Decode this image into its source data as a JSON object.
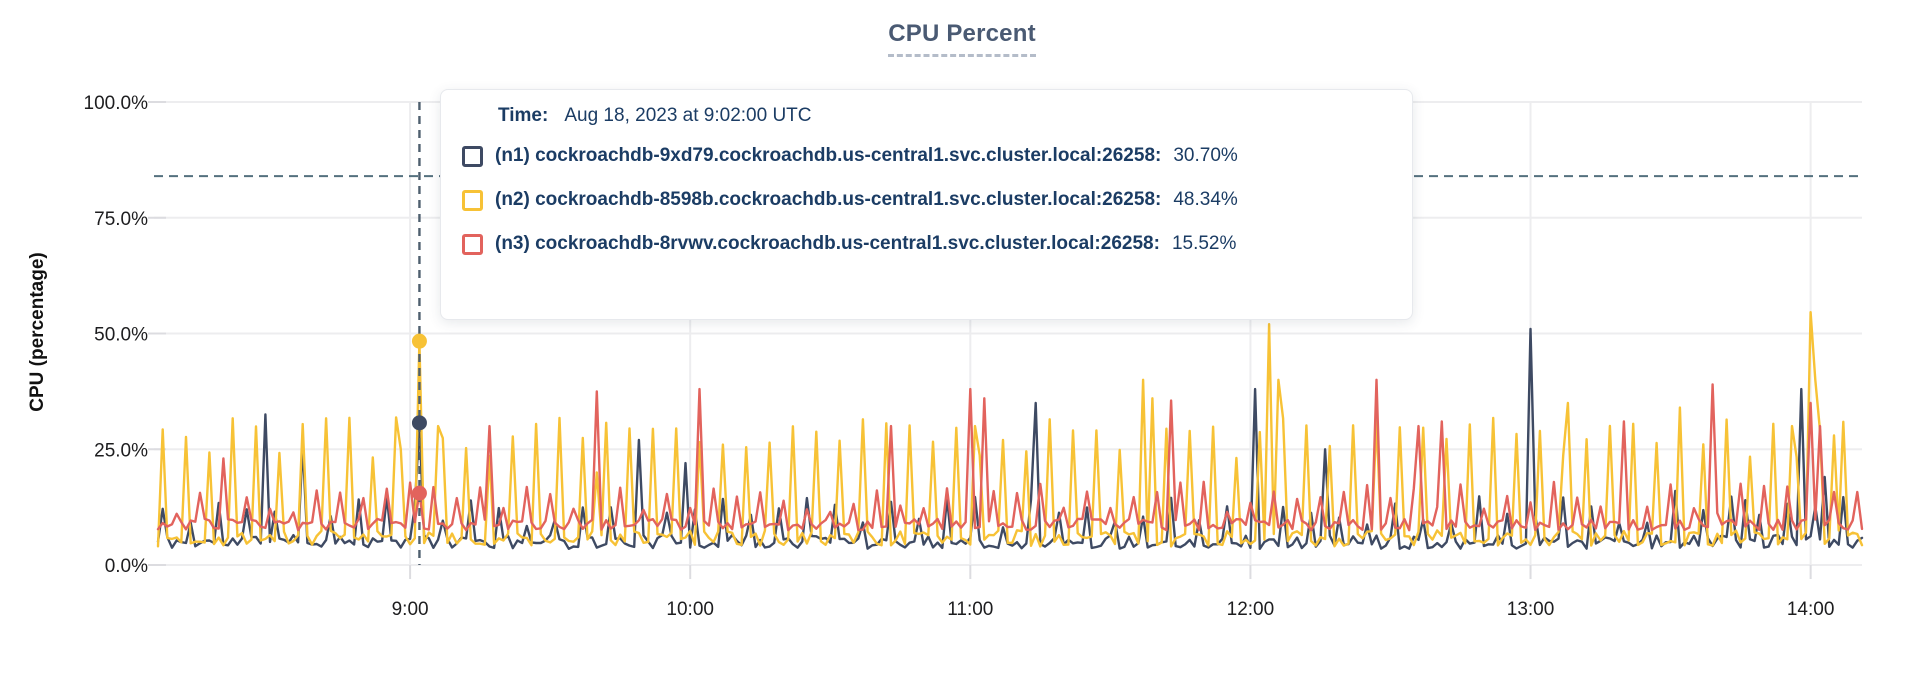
{
  "title": {
    "text": "CPU Percent"
  },
  "y_axis": {
    "label": "CPU (percentage)"
  },
  "tooltip": {
    "time_label": "Time:",
    "time_value": "Aug 18, 2023 at 9:02:00 UTC",
    "rows": [
      {
        "label": "(n1) cockroachdb-9xd79.cockroachdb.us-central1.svc.cluster.local:26258:",
        "value": "30.70%",
        "color": "#3e4a63"
      },
      {
        "label": "(n2) cockroachdb-8598b.cockroachdb.us-central1.svc.cluster.local:26258:",
        "value": "48.34%",
        "color": "#f7c236"
      },
      {
        "label": "(n3) cockroachdb-8rvwv.cockroachdb.us-central1.svc.cluster.local:26258:",
        "value": "15.52%",
        "color": "#e2635d"
      }
    ]
  },
  "colors": {
    "title": "#4a5a73",
    "tooltip_text": "#1b3c64",
    "gridline": "#ededef",
    "annotation_dash": "#54707e",
    "hover_dash": "#4e5f6e"
  },
  "chart_data": {
    "type": "line",
    "title": "CPU Percent",
    "ylabel": "CPU (percentage)",
    "ylim": [
      0,
      100
    ],
    "grid": true,
    "y_ticks": [
      {
        "value": 0,
        "label": "0.0%"
      },
      {
        "value": 25,
        "label": "25.0%"
      },
      {
        "value": 50,
        "label": "50.0%"
      },
      {
        "value": 75,
        "label": "75.0%"
      },
      {
        "value": 100,
        "label": "100.0%"
      }
    ],
    "x_ticks": [
      {
        "minute": 540,
        "label": "9:00"
      },
      {
        "minute": 600,
        "label": "10:00"
      },
      {
        "minute": 660,
        "label": "11:00"
      },
      {
        "minute": 720,
        "label": "12:00"
      },
      {
        "minute": 780,
        "label": "13:00"
      },
      {
        "minute": 840,
        "label": "14:00"
      }
    ],
    "t_start": 486,
    "t_end": 851,
    "annotation_line": {
      "value": 84,
      "style": "dashed"
    },
    "hover": {
      "minute": 542,
      "time": "Aug 18, 2023 at 9:02:00 UTC",
      "values": [
        {
          "series": "n1",
          "cpu_percent": 30.7
        },
        {
          "series": "n2",
          "cpu_percent": 48.34
        },
        {
          "series": "n3",
          "cpu_percent": 15.52
        }
      ]
    },
    "series": [
      {
        "id": "n1",
        "name": "cockroachdb-9xd79.cockroachdb.us-central1.svc.cluster.local:26258",
        "color": "#3e4a63",
        "seed": 11,
        "base_range": [
          3.5,
          6.5
        ],
        "minor_period": 6,
        "minor_phase": 1,
        "minor_range": [
          8,
          15
        ],
        "majors": [
          [
            509,
            32.5
          ],
          [
            517,
            26
          ],
          [
            542,
            30.7
          ],
          [
            589,
            27
          ],
          [
            599,
            22
          ],
          [
            674,
            35
          ],
          [
            721,
            38
          ],
          [
            736,
            25
          ],
          [
            780,
            51
          ],
          [
            811,
            16
          ],
          [
            826,
            14
          ],
          [
            838,
            38
          ],
          [
            843,
            19
          ]
        ]
      },
      {
        "id": "n2",
        "name": "cockroachdb-8598b.cockroachdb.us-central1.svc.cluster.local:26258",
        "color": "#f7c236",
        "seed": 7,
        "base_range": [
          4,
          7.5
        ],
        "minor_period": 5,
        "minor_phase": 2,
        "minor_range": [
          23,
          32
        ],
        "majors": [
          [
            538,
            25
          ],
          [
            542,
            48.34
          ],
          [
            546,
            30
          ],
          [
            580,
            20
          ],
          [
            661,
            30
          ],
          [
            697,
            40
          ],
          [
            699,
            36
          ],
          [
            724,
            52
          ],
          [
            726,
            40
          ],
          [
            788,
            35
          ],
          [
            812,
            34
          ],
          [
            836,
            30
          ],
          [
            840,
            54.6
          ],
          [
            841,
            40
          ],
          [
            845,
            28
          ]
        ]
      },
      {
        "id": "n3",
        "name": "cockroachdb-8rvwv.cockroachdb.us-central1.svc.cluster.local:26258",
        "color": "#e2635d",
        "seed": 23,
        "base_range": [
          7.5,
          10
        ],
        "minor_period": 5,
        "minor_phase": 0,
        "minor_range": [
          11,
          18
        ],
        "majors": [
          [
            500,
            23
          ],
          [
            542,
            15.52
          ],
          [
            557,
            30
          ],
          [
            580,
            37.5
          ],
          [
            602,
            38
          ],
          [
            643,
            30
          ],
          [
            660,
            38
          ],
          [
            663,
            36
          ],
          [
            703,
            35.5
          ],
          [
            747,
            40
          ],
          [
            756,
            30
          ],
          [
            761,
            31
          ],
          [
            800,
            31
          ],
          [
            819,
            39
          ],
          [
            840,
            35
          ],
          [
            842,
            30
          ]
        ]
      }
    ]
  }
}
